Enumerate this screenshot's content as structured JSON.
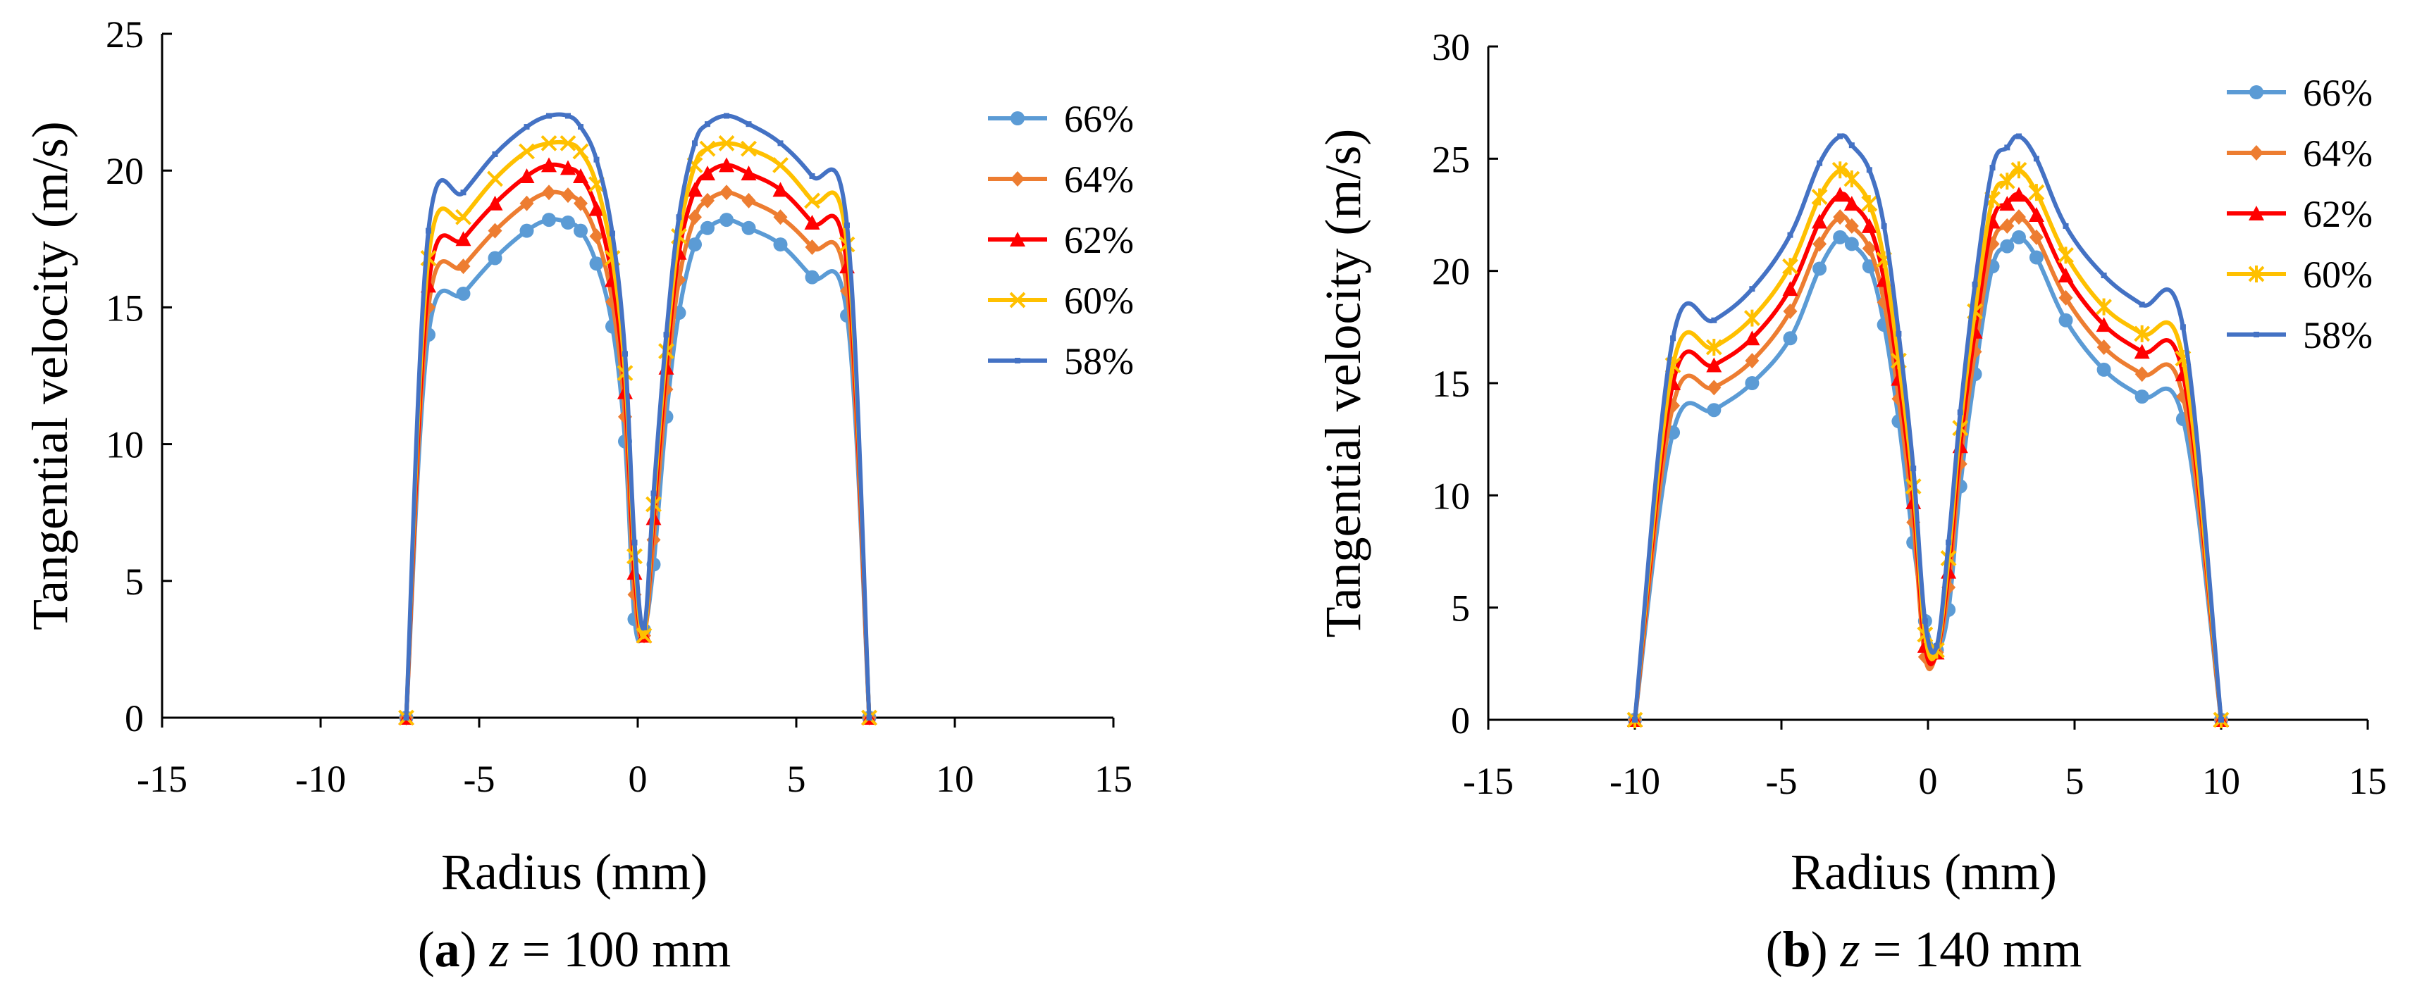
{
  "chart_data": [
    {
      "type": "line",
      "caption_label": "a",
      "caption_var": "z",
      "caption_rest": " = 100 mm",
      "xlabel": "Radius (mm)",
      "ylabel": "Tangential velocity (m/s)",
      "xlim": [
        -15,
        15
      ],
      "ylim": [
        0,
        25
      ],
      "xticks": [
        -15,
        -10,
        -5,
        0,
        5,
        10,
        15
      ],
      "yticks": [
        0,
        5,
        10,
        15,
        20,
        25
      ],
      "legend_position": "top-right",
      "series": [
        {
          "name": "66%",
          "color": "#5B9BD5",
          "marker": "circle",
          "x": [
            -7.3,
            -6.6,
            -5.5,
            -4.5,
            -3.5,
            -2.8,
            -2.2,
            -1.8,
            -1.3,
            -0.8,
            -0.4,
            -0.1,
            0.2,
            0.5,
            0.9,
            1.3,
            1.8,
            2.2,
            2.8,
            3.5,
            4.5,
            5.5,
            6.6,
            7.3
          ],
          "y": [
            0,
            14.0,
            15.5,
            16.8,
            17.8,
            18.2,
            18.1,
            17.8,
            16.6,
            14.3,
            10.1,
            3.6,
            3.2,
            5.6,
            11.0,
            14.8,
            17.3,
            17.9,
            18.2,
            17.9,
            17.3,
            16.1,
            14.7,
            0
          ]
        },
        {
          "name": "64%",
          "color": "#ED7D31",
          "marker": "diamond",
          "x": [
            -7.3,
            -6.6,
            -5.5,
            -4.5,
            -3.5,
            -2.8,
            -2.2,
            -1.8,
            -1.3,
            -0.8,
            -0.4,
            -0.1,
            0.2,
            0.5,
            0.9,
            1.3,
            1.8,
            2.2,
            2.8,
            3.5,
            4.5,
            5.5,
            6.6,
            7.3
          ],
          "y": [
            0,
            15.0,
            16.5,
            17.8,
            18.8,
            19.2,
            19.1,
            18.8,
            17.6,
            15.2,
            11.0,
            4.5,
            3.0,
            6.5,
            12.0,
            16.0,
            18.3,
            18.9,
            19.2,
            18.9,
            18.3,
            17.2,
            15.6,
            0
          ]
        },
        {
          "name": "62%",
          "color": "#FF0000",
          "marker": "triangle",
          "x": [
            -7.3,
            -6.6,
            -5.5,
            -4.5,
            -3.5,
            -2.8,
            -2.2,
            -1.8,
            -1.3,
            -0.8,
            -0.4,
            -0.1,
            0.2,
            0.5,
            0.9,
            1.3,
            1.8,
            2.2,
            2.8,
            3.5,
            4.5,
            5.5,
            6.6,
            7.3
          ],
          "y": [
            0,
            15.8,
            17.5,
            18.8,
            19.8,
            20.2,
            20.1,
            19.8,
            18.6,
            16.0,
            11.9,
            5.3,
            3.0,
            7.3,
            12.8,
            17.0,
            19.3,
            19.9,
            20.2,
            19.9,
            19.3,
            18.1,
            16.5,
            0
          ]
        },
        {
          "name": "60%",
          "color": "#FFC000",
          "marker": "x",
          "x": [
            -7.3,
            -6.6,
            -5.5,
            -4.5,
            -3.5,
            -2.8,
            -2.2,
            -1.8,
            -1.3,
            -0.8,
            -0.4,
            -0.1,
            0.2,
            0.5,
            0.9,
            1.3,
            1.8,
            2.2,
            2.8,
            3.5,
            4.5,
            5.5,
            6.6,
            7.3
          ],
          "y": [
            0,
            16.8,
            18.3,
            19.7,
            20.7,
            21.0,
            21.0,
            20.7,
            19.5,
            16.8,
            12.6,
            5.9,
            3.0,
            7.8,
            13.4,
            17.6,
            20.2,
            20.8,
            21.0,
            20.8,
            20.2,
            18.9,
            17.3,
            0
          ]
        },
        {
          "name": "58%",
          "color": "#4472C4",
          "marker": "dash",
          "x": [
            -7.3,
            -6.6,
            -5.5,
            -4.5,
            -3.5,
            -2.8,
            -2.2,
            -1.8,
            -1.3,
            -0.8,
            -0.4,
            -0.1,
            0.2,
            0.5,
            0.9,
            1.3,
            1.8,
            2.2,
            2.8,
            3.5,
            4.5,
            5.5,
            6.6,
            7.3
          ],
          "y": [
            0,
            17.8,
            19.2,
            20.6,
            21.6,
            22.0,
            22.0,
            21.6,
            20.4,
            17.7,
            13.3,
            6.4,
            3.3,
            8.2,
            14.0,
            18.3,
            21.0,
            21.7,
            22.0,
            21.7,
            21.0,
            19.8,
            18.0,
            0
          ]
        }
      ]
    },
    {
      "type": "line",
      "caption_label": "b",
      "caption_var": "z",
      "caption_rest": " = 140 mm",
      "xlabel": "Radius (mm)",
      "ylabel": "Tangential velocity (m/s)",
      "xlim": [
        -15,
        15
      ],
      "ylim": [
        0,
        30
      ],
      "xticks": [
        -15,
        -10,
        -5,
        0,
        5,
        10,
        15
      ],
      "yticks": [
        0,
        5,
        10,
        15,
        20,
        25,
        30
      ],
      "legend_position": "top-right",
      "series": [
        {
          "name": "66%",
          "color": "#5B9BD5",
          "marker": "circle",
          "x": [
            -10.0,
            -8.7,
            -7.3,
            -6.0,
            -4.7,
            -3.7,
            -3.0,
            -2.6,
            -2.0,
            -1.5,
            -1.0,
            -0.5,
            -0.1,
            0.3,
            0.7,
            1.1,
            1.6,
            2.2,
            2.7,
            3.1,
            3.7,
            4.7,
            6.0,
            7.3,
            8.7,
            10.0
          ],
          "y": [
            0,
            12.8,
            13.8,
            15.0,
            17.0,
            20.1,
            21.5,
            21.2,
            20.2,
            17.6,
            13.3,
            7.9,
            4.4,
            3.1,
            4.9,
            10.4,
            15.4,
            20.2,
            21.1,
            21.5,
            20.6,
            17.8,
            15.6,
            14.4,
            13.4,
            0
          ]
        },
        {
          "name": "64%",
          "color": "#ED7D31",
          "marker": "diamond",
          "x": [
            -10.0,
            -8.7,
            -7.3,
            -6.0,
            -4.7,
            -3.7,
            -3.0,
            -2.6,
            -2.0,
            -1.5,
            -1.0,
            -0.5,
            -0.1,
            0.3,
            0.7,
            1.1,
            1.6,
            2.2,
            2.7,
            3.1,
            3.7,
            4.7,
            6.0,
            7.3,
            8.7,
            10.0
          ],
          "y": [
            0,
            14.0,
            14.8,
            16.0,
            18.2,
            21.2,
            22.4,
            22.0,
            21.0,
            18.6,
            14.3,
            8.8,
            2.8,
            3.0,
            5.9,
            11.4,
            16.4,
            21.2,
            22.0,
            22.4,
            21.5,
            18.8,
            16.6,
            15.4,
            14.4,
            0
          ]
        },
        {
          "name": "62%",
          "color": "#FF0000",
          "marker": "triangle",
          "x": [
            -10.0,
            -8.7,
            -7.3,
            -6.0,
            -4.7,
            -3.7,
            -3.0,
            -2.6,
            -2.0,
            -1.5,
            -1.0,
            -0.5,
            -0.1,
            0.3,
            0.7,
            1.1,
            1.6,
            2.2,
            2.7,
            3.1,
            3.7,
            4.7,
            6.0,
            7.3,
            8.7,
            10.0
          ],
          "y": [
            0,
            15.0,
            15.8,
            17.0,
            19.2,
            22.2,
            23.4,
            23.0,
            22.0,
            19.6,
            15.2,
            9.7,
            3.3,
            3.0,
            6.6,
            12.2,
            17.3,
            22.2,
            23.0,
            23.4,
            22.5,
            19.8,
            17.6,
            16.4,
            15.4,
            0
          ]
        },
        {
          "name": "60%",
          "color": "#FFC000",
          "marker": "asterisk",
          "x": [
            -10.0,
            -8.7,
            -7.3,
            -6.0,
            -4.7,
            -3.7,
            -3.0,
            -2.6,
            -2.0,
            -1.5,
            -1.0,
            -0.5,
            -0.1,
            0.3,
            0.7,
            1.1,
            1.6,
            2.2,
            2.7,
            3.1,
            3.7,
            4.7,
            6.0,
            7.3,
            8.7,
            10.0
          ],
          "y": [
            0,
            15.8,
            16.6,
            17.9,
            20.2,
            23.3,
            24.5,
            24.1,
            23.0,
            20.5,
            16.0,
            10.4,
            3.8,
            3.1,
            7.2,
            13.0,
            18.2,
            23.2,
            24.0,
            24.5,
            23.5,
            20.7,
            18.4,
            17.2,
            16.1,
            0
          ]
        },
        {
          "name": "58%",
          "color": "#4472C4",
          "marker": "dash",
          "x": [
            -10.0,
            -8.7,
            -7.3,
            -6.0,
            -4.7,
            -3.7,
            -3.0,
            -2.6,
            -2.0,
            -1.5,
            -1.0,
            -0.5,
            -0.1,
            0.3,
            0.7,
            1.1,
            1.6,
            2.2,
            2.7,
            3.1,
            3.7,
            4.7,
            6.0,
            7.3,
            8.7,
            10.0
          ],
          "y": [
            0,
            17.0,
            17.8,
            19.2,
            21.6,
            24.8,
            26.0,
            25.6,
            24.5,
            22.0,
            17.2,
            11.2,
            4.4,
            3.3,
            7.9,
            13.7,
            19.4,
            24.6,
            25.5,
            26.0,
            25.0,
            22.0,
            19.8,
            18.5,
            17.5,
            0
          ]
        }
      ]
    }
  ]
}
